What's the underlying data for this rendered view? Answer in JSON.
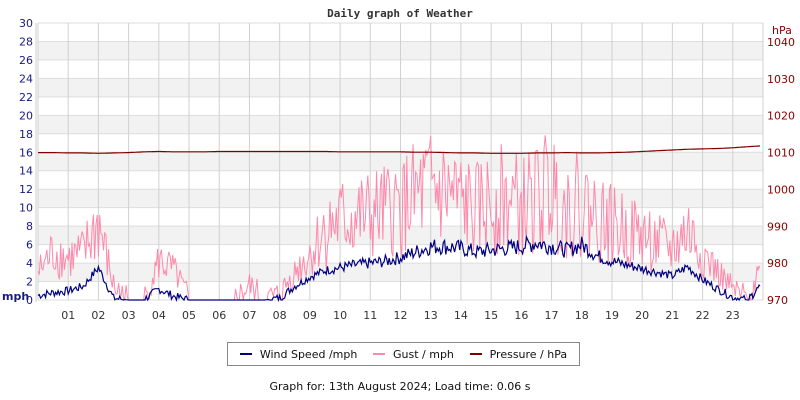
{
  "chart_data": {
    "type": "line",
    "title": "Daily graph of Weather",
    "xlabel": "",
    "ylabel": "mph",
    "y2label": "hPa",
    "ylim": [
      0,
      30
    ],
    "y2lim": [
      970,
      1045
    ],
    "grid": true,
    "legend_position": "bottom",
    "x_tick_labels": [
      "01",
      "02",
      "03",
      "04",
      "05",
      "06",
      "07",
      "08",
      "09",
      "10",
      "11",
      "12",
      "13",
      "14",
      "15",
      "16",
      "17",
      "18",
      "19",
      "20",
      "21",
      "22",
      "23"
    ],
    "y_tick_labels": [
      "0",
      "2",
      "4",
      "6",
      "8",
      "10",
      "12",
      "14",
      "16",
      "18",
      "20",
      "22",
      "24",
      "26",
      "28",
      "30"
    ],
    "y2_tick_labels": [
      "970",
      "980",
      "990",
      "1000",
      "1010",
      "1020",
      "1030",
      "1040"
    ],
    "x_hours": [
      0,
      0.5,
      1,
      1.5,
      2,
      2.5,
      3,
      3.5,
      4,
      4.5,
      5,
      5.5,
      6,
      6.5,
      7,
      7.5,
      8,
      8.5,
      9,
      9.5,
      10,
      10.5,
      11,
      11.5,
      12,
      12.5,
      13,
      13.5,
      14,
      14.5,
      15,
      15.5,
      16,
      16.5,
      17,
      17.5,
      18,
      18.5,
      19,
      19.5,
      20,
      20.5,
      21,
      21.5,
      22,
      22.5,
      23,
      23.5,
      23.9
    ],
    "series": [
      {
        "name": "Wind Speed /mph",
        "axis": "left",
        "color": "#000080",
        "values": [
          0.5,
          0.8,
          1.0,
          1.5,
          3.5,
          0.2,
          0,
          0,
          1.2,
          0.4,
          0,
          0,
          0,
          0,
          0,
          0,
          0.2,
          1.5,
          2.5,
          3.2,
          3.5,
          3.8,
          4.0,
          4.2,
          4.6,
          5.2,
          5.8,
          5.8,
          5.6,
          5.2,
          5.4,
          5.6,
          5.8,
          6.2,
          5.8,
          5.4,
          6.0,
          4.8,
          4.2,
          3.8,
          3.4,
          3.0,
          2.6,
          3.6,
          2.2,
          1.2,
          0.3,
          0,
          1.5
        ]
      },
      {
        "name": "Gust / mph",
        "axis": "left",
        "color": "#ff88aa",
        "values": [
          3.0,
          5.2,
          4.5,
          5.0,
          8.3,
          1.5,
          0,
          0,
          4.2,
          3.2,
          0,
          0,
          0,
          0,
          1.5,
          0,
          0.5,
          3.0,
          5.0,
          7.5,
          8.5,
          8.8,
          9.0,
          9.5,
          10.0,
          11.0,
          12.0,
          11.5,
          10.5,
          9.5,
          10.5,
          11.0,
          10.0,
          11.0,
          12.0,
          10.0,
          10.5,
          9.0,
          8.0,
          7.5,
          7.0,
          6.0,
          5.5,
          7.5,
          5.0,
          3.0,
          1.0,
          0,
          3.5
        ]
      },
      {
        "name": "Pressure / hPa",
        "axis": "right",
        "color": "#800000",
        "values": [
          1010.0,
          1010.0,
          1009.9,
          1009.9,
          1009.8,
          1009.9,
          1010.0,
          1010.2,
          1010.3,
          1010.2,
          1010.2,
          1010.2,
          1010.3,
          1010.3,
          1010.3,
          1010.3,
          1010.3,
          1010.3,
          1010.3,
          1010.3,
          1010.2,
          1010.2,
          1010.2,
          1010.2,
          1010.2,
          1010.1,
          1010.1,
          1010.0,
          1009.9,
          1009.9,
          1009.8,
          1009.8,
          1009.8,
          1009.9,
          1009.9,
          1010.0,
          1009.9,
          1009.9,
          1010.0,
          1010.1,
          1010.3,
          1010.5,
          1010.7,
          1010.9,
          1011.0,
          1011.1,
          1011.3,
          1011.6,
          1011.8
        ]
      }
    ]
  },
  "legend": {
    "items": [
      {
        "label": "Wind Speed /mph",
        "color": "#000080"
      },
      {
        "label": "Gust / mph",
        "color": "#ff88aa"
      },
      {
        "label": "Pressure / hPa",
        "color": "#800000"
      }
    ]
  },
  "footer": {
    "text": "Graph for: 13th August 2024; Load time: 0.06 s"
  }
}
